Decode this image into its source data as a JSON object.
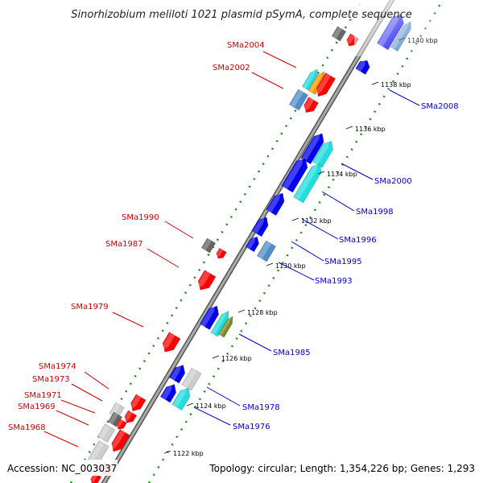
{
  "title": "Sinorhizobium meliloti 1021 plasmid pSymA, complete sequence",
  "footer": {
    "accession": "Accession: NC_003037",
    "topology": "Topology: circular; Length: 1,354,226 bp; Genes: 1,293"
  },
  "colors": {
    "backbone": "#888888",
    "tick": "#1a8a1a",
    "gene_red": "#ff0000",
    "gene_blue": "#0000ee",
    "gene_cyan": "#22dddd",
    "gene_orange": "#ff9900",
    "gene_steelblue": "#4f8ec8",
    "gene_gray": "#666666",
    "gene_lightgray": "#cccccc",
    "gene_olive": "#7a8a2a",
    "label_red": "#cc0000",
    "label_blue": "#0000cc"
  },
  "ticks": [
    "1122 kbp",
    "1124 kbp",
    "1126 kbp",
    "1128 kbp",
    "1130 kbp",
    "1132 kbp",
    "1134 kbp",
    "1136 kbp",
    "1138 kbp",
    "1140 kbp"
  ],
  "labels_left": [
    "SMa2004",
    "SMa2002",
    "SMa1990",
    "SMa1987",
    "SMa1979",
    "SMa1974",
    "SMa1973",
    "SMa1971",
    "SMa1969",
    "SMa1968"
  ],
  "labels_right": [
    "SMa2008",
    "SMa2000",
    "SMa1998",
    "SMa1996",
    "SMa1995",
    "SMa1993",
    "SMa1985",
    "SMa1978",
    "SMa1976"
  ]
}
